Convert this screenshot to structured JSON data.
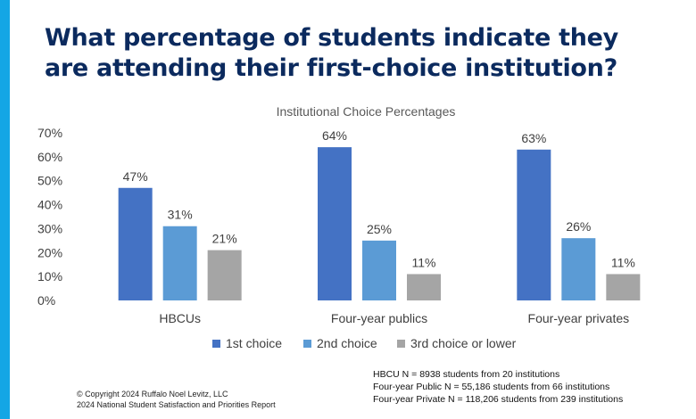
{
  "page": {
    "title": "What percentage of students indicate they are attending their first-choice institution?",
    "accent_color": "#14a6e5",
    "title_color": "#0b2a5e"
  },
  "chart_data": {
    "type": "bar",
    "title": "Institutional Choice Percentages",
    "categories": [
      "HBCUs",
      "Four-year publics",
      "Four-year privates"
    ],
    "series": [
      {
        "name": "1st choice",
        "values": [
          47,
          64,
          63
        ],
        "color": "#4472c4"
      },
      {
        "name": "2nd choice",
        "values": [
          31,
          25,
          26
        ],
        "color": "#5b9bd5"
      },
      {
        "name": "3rd choice or lower",
        "values": [
          21,
          11,
          11
        ],
        "color": "#a5a5a5"
      }
    ],
    "ylim": [
      0,
      70
    ],
    "y_ticks": [
      "0%",
      "10%",
      "20%",
      "30%",
      "40%",
      "50%",
      "60%",
      "70%"
    ],
    "data_labels": [
      [
        "47%",
        "64%",
        "63%"
      ],
      [
        "31%",
        "25%",
        "26%"
      ],
      [
        "21%",
        "11%",
        "11%"
      ]
    ],
    "grid": false,
    "legend_position": "bottom",
    "xlabel": "",
    "ylabel": ""
  },
  "footnotes": {
    "copyright": "© Copyright 2024 Ruffalo Noel Levitz, LLC",
    "report": "2024 National Student Satisfaction and Priorities Report",
    "sample_sizes": [
      "HBCU N = 8938 students from 20 institutions",
      "Four-year Public N = 55,186 students from 66 institutions",
      "Four-year Private N = 118,206 students from 239 institutions"
    ]
  }
}
